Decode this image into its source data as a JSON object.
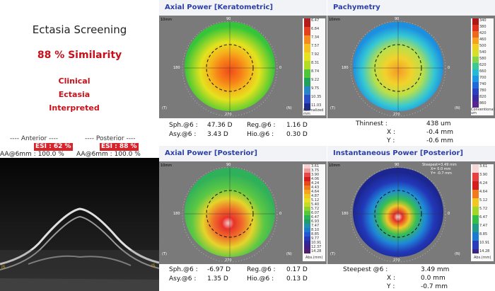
{
  "left": {
    "title": "Ectasia Screening",
    "similarity": "88 % Similarity",
    "result_lines": [
      "Clinical",
      "Ectasia",
      "Interpreted"
    ],
    "anterior_header": "---- Anterior ----",
    "posterior_header": "---- Posterior ----",
    "anterior_esi": "ESI : 62 %",
    "posterior_esi": "ESI : 88 %",
    "anterior_aa": "AA@6mm : 100.0 %",
    "posterior_aa": "AA@6mm : 100.0 %"
  },
  "panels": [
    {
      "title": "Axial Power [Keratometric]",
      "corner": "10mm",
      "scale_unit": "Normalized\nmm",
      "scale_ticks": [
        "6.47",
        "6.84",
        "7.34",
        "7.57",
        "7.92",
        "8.31",
        "8.74",
        "9.22",
        "9.75",
        "10.35",
        "11.03"
      ],
      "rows": [
        {
          "k1": "Sph.@6 :",
          "v1": "47.36 D",
          "k2": "Reg.@6 :",
          "v2": "1.16 D"
        },
        {
          "k1": "Asy.@6 :",
          "v1": "3.43 D",
          "k2": "Hio.@6 :",
          "v2": "0.30 D"
        }
      ]
    },
    {
      "title": "Pachymetry",
      "corner": "10mm",
      "scale_unit": "Conventional\num",
      "scale_ticks": [
        "340",
        "380",
        "420",
        "460",
        "500",
        "540",
        "580",
        "620",
        "660",
        "700",
        "740",
        "780",
        "820",
        "860"
      ],
      "rows": [
        {
          "k1": "Thinnest :",
          "v1": "438 um"
        },
        {
          "k1": "X :",
          "v1": "-0.4 mm"
        },
        {
          "k1": "Y :",
          "v1": "-0.6 mm"
        }
      ]
    },
    {
      "title": "Axial Power [Posterior]",
      "corner": "10mm",
      "scale_unit": "Abs.(mm)",
      "scale_ticks": [
        "3.61",
        "3.75",
        "3.90",
        "4.06",
        "4.24",
        "4.43",
        "4.64",
        "4.87",
        "5.12",
        "5.40",
        "5.72",
        "6.07",
        "6.47",
        "6.93",
        "7.47",
        "8.10",
        "8.85",
        "9.77",
        "10.91",
        "12.37",
        "14.28"
      ],
      "rows": [
        {
          "k1": "Sph.@6 :",
          "v1": "-6.97 D",
          "k2": "Reg.@6 :",
          "v2": "0.17 D"
        },
        {
          "k1": "Asy.@6 :",
          "v1": "1.35 D",
          "k2": "Hio.@6 :",
          "v2": "0.13 D"
        }
      ]
    },
    {
      "title": "Instantaneous Power [Posterior]",
      "corner": "10mm",
      "scale_unit": "Abs.(mm)",
      "scale_ticks": [
        "3.61",
        "3.90",
        "4.24",
        "4.64",
        "5.12",
        "5.72",
        "6.47",
        "7.47",
        "8.85",
        "10.91",
        "14.28"
      ],
      "annotation": [
        "Steepest=3.49 mm",
        "X= 0.0 mm",
        "Y= -0.7 mm"
      ],
      "rows": [
        {
          "k1": "Steepest @6 :",
          "v1": "3.49 mm"
        },
        {
          "k1": "X :",
          "v1": "0.0 mm"
        },
        {
          "k1": "Y :",
          "v1": "-0.7 mm"
        }
      ]
    }
  ],
  "axis_labels": {
    "top": "90",
    "left": "180",
    "right": "0",
    "bottom": "270"
  },
  "eye_labels": {
    "left": "(T)",
    "right": "(N)"
  },
  "colors": {
    "accent_red": "#c8101a",
    "title_blue": "#2c3fa8"
  }
}
